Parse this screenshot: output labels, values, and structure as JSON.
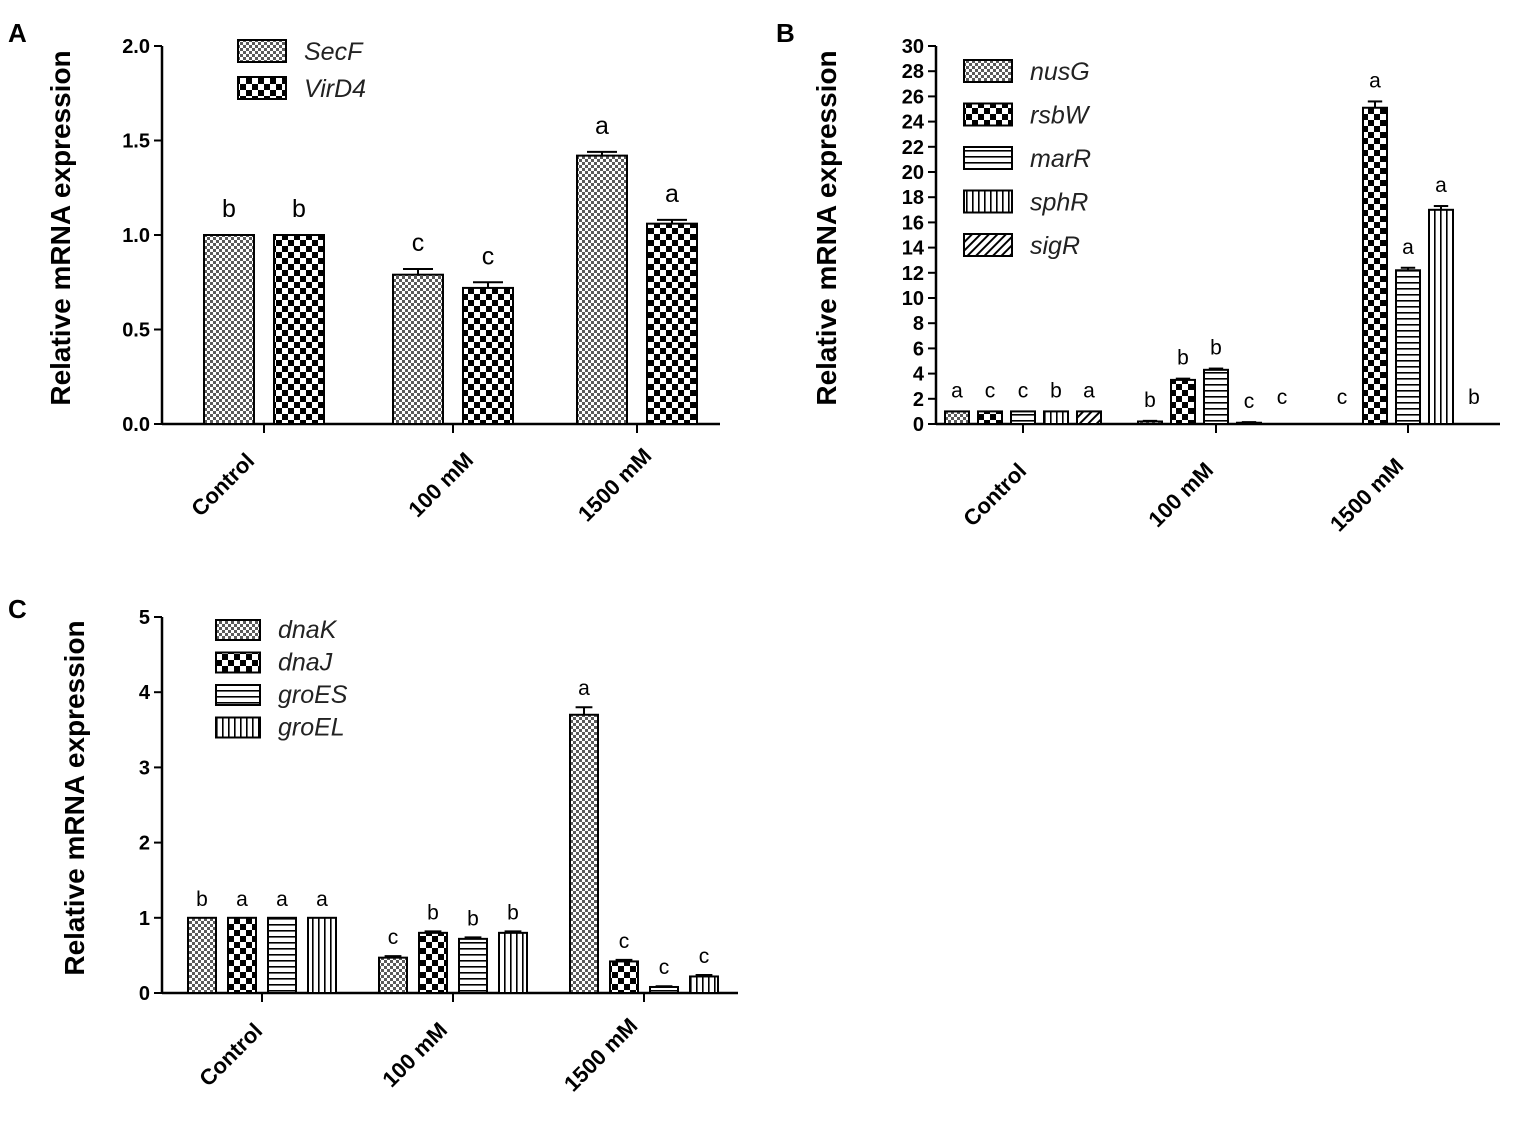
{
  "chart_data": [
    {
      "panel": "A",
      "type": "bar",
      "ylabel": "Relative mRNA expression",
      "ylim": [
        0,
        2.0
      ],
      "yticks": [
        "0.0",
        "0.5",
        "1.0",
        "1.5",
        "2.0"
      ],
      "categories": [
        "Control",
        "100 mM",
        "1500 mM"
      ],
      "legend_position": "top-left",
      "series": [
        {
          "name": "SecF",
          "pattern": "fine-check",
          "values": [
            1.0,
            0.79,
            1.42
          ],
          "errors": [
            0,
            0.03,
            0.02
          ],
          "labels": [
            "b",
            "c",
            "a"
          ]
        },
        {
          "name": "VirD4",
          "pattern": "coarse-check",
          "values": [
            1.0,
            0.72,
            1.06
          ],
          "errors": [
            0,
            0.03,
            0.02
          ],
          "labels": [
            "b",
            "c",
            "a"
          ]
        }
      ]
    },
    {
      "panel": "B",
      "type": "bar",
      "ylabel": "Relative mRNA expression",
      "ylim": [
        0,
        30
      ],
      "yticks": [
        "0",
        "2",
        "4",
        "6",
        "8",
        "10",
        "12",
        "14",
        "16",
        "18",
        "20",
        "22",
        "24",
        "26",
        "28",
        "30"
      ],
      "categories": [
        "Control",
        "100 mM",
        "1500 mM"
      ],
      "legend_position": "top-left",
      "series": [
        {
          "name": "nusG",
          "pattern": "fine-check",
          "values": [
            1.0,
            0.2,
            0.0
          ],
          "errors": [
            0,
            0.05,
            0
          ],
          "labels": [
            "a",
            "b",
            "c"
          ]
        },
        {
          "name": "rsbW",
          "pattern": "coarse-check",
          "values": [
            1.0,
            3.5,
            25.1
          ],
          "errors": [
            0,
            0.1,
            0.5
          ],
          "labels": [
            "c",
            "b",
            "a"
          ]
        },
        {
          "name": "marR",
          "pattern": "horizontal",
          "values": [
            1.0,
            4.3,
            12.2
          ],
          "errors": [
            0,
            0.1,
            0.2
          ],
          "labels": [
            "c",
            "b",
            "a"
          ]
        },
        {
          "name": "sphR",
          "pattern": "vertical",
          "values": [
            1.0,
            0.1,
            17.0
          ],
          "errors": [
            0,
            0.05,
            0.3
          ],
          "labels": [
            "b",
            "c",
            "a"
          ]
        },
        {
          "name": "sigR",
          "pattern": "diagonal",
          "values": [
            1.0,
            0.0,
            0.0
          ],
          "errors": [
            0,
            0,
            0
          ],
          "labels": [
            "a",
            "c",
            "b"
          ]
        }
      ]
    },
    {
      "panel": "C",
      "type": "bar",
      "ylabel": "Relative mRNA expression",
      "ylim": [
        0,
        5
      ],
      "yticks": [
        "0",
        "1",
        "2",
        "3",
        "4",
        "5"
      ],
      "categories": [
        "Control",
        "100 mM",
        "1500 mM"
      ],
      "legend_position": "top-left",
      "series": [
        {
          "name": "dnaK",
          "pattern": "fine-check",
          "values": [
            1.0,
            0.47,
            3.7
          ],
          "errors": [
            0,
            0.02,
            0.1
          ],
          "labels": [
            "b",
            "c",
            "a"
          ]
        },
        {
          "name": "dnaJ",
          "pattern": "coarse-check",
          "values": [
            1.0,
            0.8,
            0.42
          ],
          "errors": [
            0,
            0.02,
            0.02
          ],
          "labels": [
            "a",
            "b",
            "c"
          ]
        },
        {
          "name": "groES",
          "pattern": "horizontal",
          "values": [
            1.0,
            0.72,
            0.08
          ],
          "errors": [
            0,
            0.02,
            0.01
          ],
          "labels": [
            "a",
            "b",
            "c"
          ]
        },
        {
          "name": "groEL",
          "pattern": "vertical",
          "values": [
            1.0,
            0.8,
            0.22
          ],
          "errors": [
            0,
            0.02,
            0.02
          ],
          "labels": [
            "a",
            "b",
            "c"
          ]
        }
      ]
    }
  ]
}
